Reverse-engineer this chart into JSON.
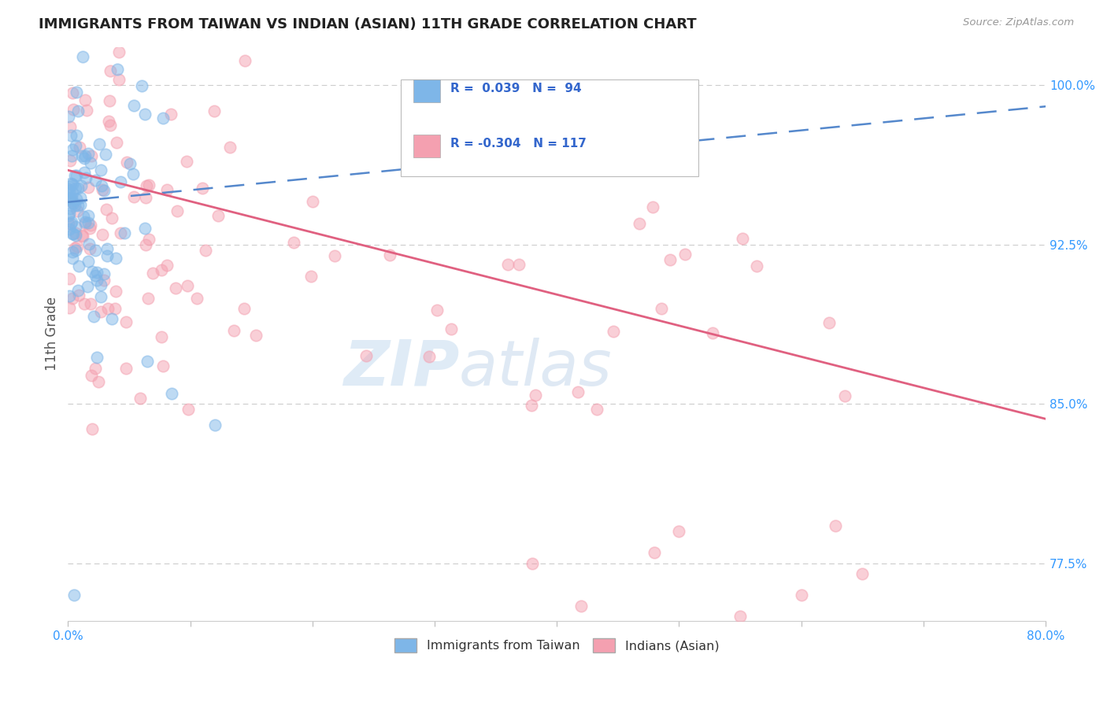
{
  "title": "IMMIGRANTS FROM TAIWAN VS INDIAN (ASIAN) 11TH GRADE CORRELATION CHART",
  "source": "Source: ZipAtlas.com",
  "ylabel": "11th Grade",
  "xmin": 0.0,
  "xmax": 0.8,
  "ymin": 0.748,
  "ymax": 1.018,
  "taiwan_color": "#7EB6E8",
  "indian_color": "#F4A0B0",
  "taiwan_line_color": "#5588CC",
  "indian_line_color": "#E06080",
  "trendline_taiwan": [
    0.0,
    0.8,
    0.945,
    0.99
  ],
  "trendline_indian": [
    0.0,
    0.8,
    0.96,
    0.843
  ],
  "y_ticks": [
    1.0,
    0.925,
    0.85,
    0.775
  ],
  "y_labels": [
    "100.0%",
    "92.5%",
    "85.0%",
    "77.5%"
  ],
  "watermark_zip": "ZIP",
  "watermark_atlas": "atlas",
  "legend_taiwan_label": "Immigrants from Taiwan",
  "legend_indian_label": "Indians (Asian)",
  "bg_color": "#FFFFFF",
  "grid_color": "#CCCCCC",
  "tick_color": "#3399FF"
}
